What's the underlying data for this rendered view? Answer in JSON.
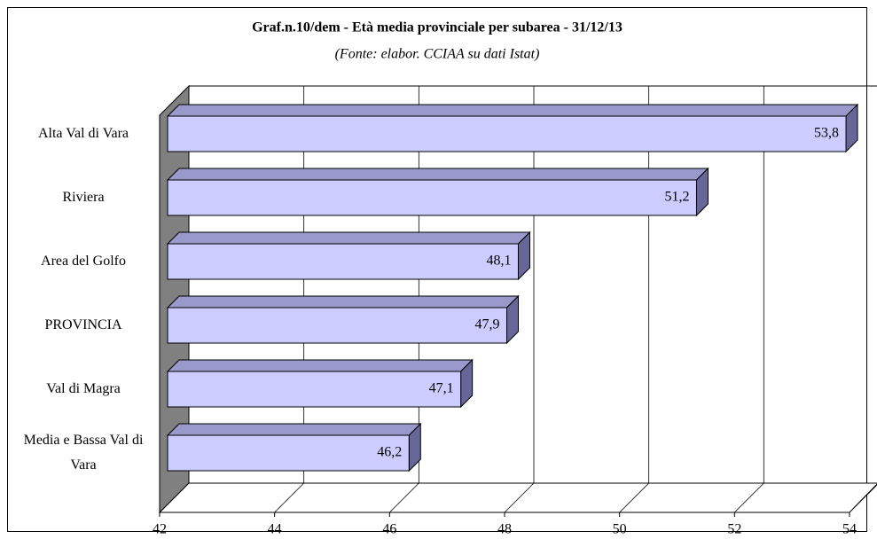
{
  "chart_data": {
    "type": "bar",
    "orientation": "horizontal",
    "title": "Graf.n.10/dem - Età media provinciale per subarea - 31/12/13",
    "subtitle": "(Fonte: elabor. CCIAA su dati Istat)",
    "categories": [
      "Alta Val di Vara",
      "Riviera",
      "Area del Golfo",
      "PROVINCIA",
      "Val di Magra",
      "Media e Bassa Val di Vara"
    ],
    "values": [
      53.8,
      51.2,
      48.1,
      47.9,
      47.1,
      46.2
    ],
    "value_labels": [
      "53,8",
      "51,2",
      "48,1",
      "47,9",
      "47,1",
      "46,2"
    ],
    "color": "#ccccff",
    "xlim": [
      42,
      54
    ],
    "xticks": [
      42,
      44,
      46,
      48,
      50,
      52,
      54
    ],
    "grid": true
  }
}
